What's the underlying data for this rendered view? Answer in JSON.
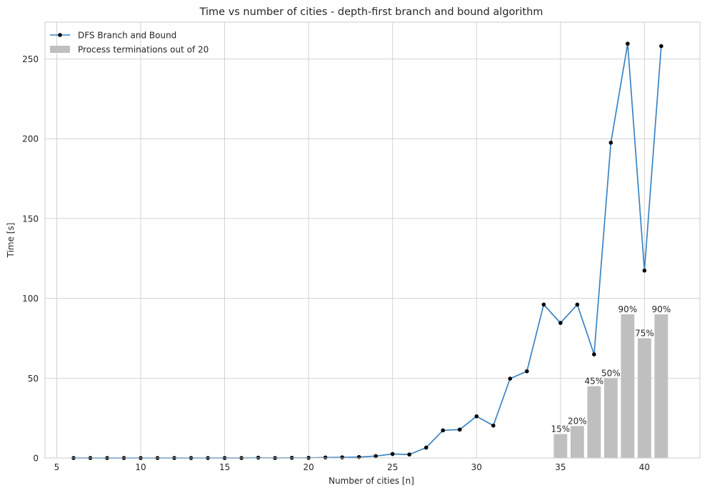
{
  "chart_data": {
    "type": "line+bar",
    "title": "Time vs number of cities - depth-first branch and bound algorithm",
    "xlabel": "Number of cities [n]",
    "ylabel": "Time [s]",
    "xlim": [
      4.3,
      43.3
    ],
    "ylim": [
      0,
      273
    ],
    "xticks": [
      5,
      10,
      15,
      20,
      25,
      30,
      35,
      40
    ],
    "yticks": [
      0,
      50,
      100,
      150,
      200,
      250
    ],
    "grid": true,
    "legend_placement": "top-left",
    "line_series": {
      "name": "DFS Branch and Bound",
      "color": "#3a84c4",
      "marker_color": "#000000",
      "x": [
        6,
        7,
        8,
        9,
        10,
        11,
        12,
        13,
        14,
        15,
        16,
        17,
        18,
        19,
        20,
        21,
        22,
        23,
        24,
        25,
        26,
        27,
        28,
        29,
        30,
        31,
        32,
        33,
        34,
        35,
        36,
        37,
        38,
        39,
        40,
        41
      ],
      "y": [
        0,
        0,
        0,
        0,
        0,
        0,
        0,
        0,
        0,
        0,
        0,
        0.2,
        0,
        0.1,
        0.1,
        0.3,
        0.4,
        0.6,
        1.2,
        2.5,
        2.2,
        6.5,
        17.3,
        17.8,
        26.1,
        20.3,
        49.7,
        54.3,
        96.1,
        84.6,
        96.1,
        64.9,
        197.5,
        259.5,
        117.4,
        258.0
      ]
    },
    "bar_series": {
      "name": "Process terminations out of 20",
      "color": "#bfbfbf",
      "x": [
        35,
        36,
        37,
        38,
        39,
        40,
        41
      ],
      "values": [
        15,
        20,
        45,
        50,
        90,
        75,
        90
      ],
      "labels": [
        "15%",
        "20%",
        "45%",
        "50%",
        "90%",
        "75%",
        "90%"
      ]
    }
  }
}
